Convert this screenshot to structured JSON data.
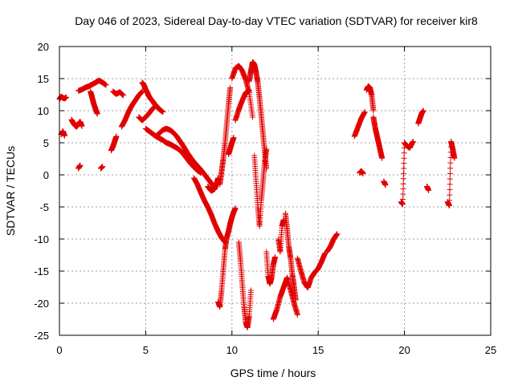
{
  "chart_data": {
    "type": "scatter",
    "title": "Day 046 of 2023, Sidereal Day-to-day VTEC variation (SDTVAR) for receiver kir8",
    "xlabel": "GPS time / hours",
    "ylabel": "SDTVAR / TECUs",
    "xlim": [
      0,
      25
    ],
    "ylim": [
      -25,
      20
    ],
    "xticks": [
      0,
      5,
      10,
      15,
      20,
      25
    ],
    "yticks": [
      -25,
      -20,
      -15,
      -10,
      -5,
      0,
      5,
      10,
      15,
      20
    ],
    "grid": true,
    "marker": "+",
    "color": "#e00000",
    "series": [
      {
        "name": "s1",
        "x": [
          0.0,
          0.1,
          0.2,
          0.3,
          0.4
        ],
        "y": [
          11.8,
          12.2,
          12.0,
          11.9,
          12.1
        ]
      },
      {
        "name": "s2",
        "x": [
          0.1,
          0.2,
          0.3
        ],
        "y": [
          6.3,
          6.8,
          6.1
        ]
      },
      {
        "name": "s3",
        "x": [
          0.7,
          0.8,
          0.9,
          1.0,
          1.1,
          1.2,
          1.3
        ],
        "y": [
          8.6,
          8.1,
          7.7,
          7.5,
          7.9,
          8.3,
          7.6
        ]
      },
      {
        "name": "s4",
        "x": [
          1.1,
          1.2
        ],
        "y": [
          1.0,
          1.5
        ]
      },
      {
        "name": "s5",
        "x": [
          1.1,
          1.3,
          1.5,
          1.7,
          1.9,
          2.1,
          2.3,
          2.5,
          2.7
        ],
        "y": [
          13.1,
          13.3,
          13.6,
          13.8,
          14.1,
          14.4,
          14.7,
          14.4,
          14.0
        ]
      },
      {
        "name": "s6",
        "x": [
          1.8,
          1.9,
          2.0,
          2.1,
          2.2
        ],
        "y": [
          13.0,
          12.0,
          11.0,
          10.2,
          9.5
        ]
      },
      {
        "name": "s7",
        "x": [
          2.4,
          2.5
        ],
        "y": [
          1.0,
          1.3
        ]
      },
      {
        "name": "s8",
        "x": [
          3.0,
          3.1,
          3.2,
          3.3
        ],
        "y": [
          3.8,
          4.4,
          5.2,
          6.0
        ]
      },
      {
        "name": "s9",
        "x": [
          3.1,
          3.3,
          3.5,
          3.7
        ],
        "y": [
          13.0,
          12.6,
          12.9,
          12.4
        ]
      },
      {
        "name": "s10",
        "x": [
          3.6,
          3.8,
          4.0,
          4.2,
          4.4,
          4.6,
          4.8
        ],
        "y": [
          7.5,
          8.5,
          9.8,
          10.8,
          11.6,
          12.4,
          13.0
        ]
      },
      {
        "name": "s11",
        "x": [
          4.6,
          4.8,
          5.0,
          5.2,
          5.4,
          5.6
        ],
        "y": [
          9.0,
          8.5,
          9.0,
          9.6,
          10.3,
          10.8
        ]
      },
      {
        "name": "s12",
        "x": [
          4.8,
          4.9,
          5.0,
          5.1,
          5.2,
          5.3,
          5.4,
          5.5,
          5.6,
          5.7,
          5.8,
          6.0
        ],
        "y": [
          14.4,
          14.0,
          13.3,
          12.8,
          12.2,
          11.8,
          11.5,
          11.1,
          10.8,
          10.5,
          10.2,
          9.8
        ]
      },
      {
        "name": "s13",
        "x": [
          5.0,
          5.2,
          5.4,
          5.6,
          5.8,
          6.0,
          6.2,
          6.4,
          6.6,
          6.8,
          7.0,
          7.2,
          7.4,
          7.6,
          7.8,
          8.0,
          8.2
        ],
        "y": [
          7.2,
          6.8,
          6.4,
          6.0,
          5.7,
          5.4,
          5.0,
          4.8,
          4.5,
          4.2,
          3.8,
          3.2,
          2.5,
          1.8,
          1.2,
          0.7,
          0.3
        ]
      },
      {
        "name": "s14",
        "x": [
          5.6,
          5.8,
          6.0,
          6.2,
          6.4,
          6.6,
          6.8,
          7.0,
          7.2,
          7.4,
          7.6,
          7.8,
          8.0,
          8.2,
          8.4,
          8.6,
          8.8,
          9.0
        ],
        "y": [
          6.0,
          6.5,
          7.0,
          7.2,
          7.0,
          6.6,
          6.0,
          5.2,
          4.4,
          3.5,
          2.7,
          2.0,
          1.4,
          0.8,
          0.1,
          -0.6,
          -1.3,
          -2.0
        ]
      },
      {
        "name": "s15",
        "x": [
          7.8,
          8.0,
          8.2,
          8.4,
          8.6,
          8.8,
          9.0,
          9.2,
          9.4,
          9.6
        ],
        "y": [
          -0.5,
          -1.5,
          -2.8,
          -4.0,
          -5.0,
          -6.2,
          -7.6,
          -8.8,
          -9.8,
          -10.5
        ]
      },
      {
        "name": "s16",
        "x": [
          8.6,
          8.8,
          9.0,
          9.1,
          9.2
        ],
        "y": [
          -1.8,
          -2.5,
          -2.2,
          -1.5,
          -0.5
        ]
      },
      {
        "name": "s17",
        "x": [
          9.2,
          9.3,
          9.4,
          9.5,
          9.6,
          9.7,
          9.8,
          9.9,
          10.0,
          10.1,
          10.2
        ],
        "y": [
          -19.8,
          -20.6,
          -18.0,
          -14.8,
          -11.6,
          -9.8,
          -8.8,
          -7.6,
          -6.6,
          -5.8,
          -5.2
        ]
      },
      {
        "name": "s18",
        "x": [
          9.3,
          9.4,
          9.5,
          9.6,
          9.7,
          9.8,
          9.9
        ],
        "y": [
          -1.5,
          0.5,
          2.5,
          5.0,
          8.0,
          11.0,
          13.6
        ]
      },
      {
        "name": "s19",
        "x": [
          9.8,
          9.9,
          10.0,
          10.1
        ],
        "y": [
          3.2,
          4.1,
          5.0,
          5.8
        ]
      },
      {
        "name": "s20",
        "x": [
          10.2,
          10.4,
          10.6,
          10.8,
          11.0
        ],
        "y": [
          8.5,
          10.2,
          11.6,
          12.8,
          13.2
        ]
      },
      {
        "name": "s21",
        "x": [
          10.0,
          10.2,
          10.4,
          10.6,
          10.8,
          11.0,
          11.2
        ],
        "y": [
          15.0,
          16.6,
          17.0,
          16.2,
          14.8,
          12.8,
          9.0
        ]
      },
      {
        "name": "s22",
        "x": [
          10.4,
          10.5,
          10.6,
          10.7,
          10.8,
          10.9,
          11.0,
          11.1
        ],
        "y": [
          -10.5,
          -13.5,
          -17.0,
          -20.5,
          -23.0,
          -23.8,
          -22.0,
          -18.0
        ]
      },
      {
        "name": "s23",
        "x": [
          11.0,
          11.1,
          11.2,
          11.3,
          11.4,
          11.5,
          11.6,
          11.7,
          11.8,
          11.9,
          12.0
        ],
        "y": [
          14.6,
          16.2,
          17.6,
          17.2,
          16.0,
          14.4,
          12.0,
          9.2,
          6.4,
          3.6,
          1.0
        ]
      },
      {
        "name": "s24",
        "x": [
          11.3,
          11.4,
          11.5,
          11.6,
          11.7,
          11.8,
          11.9,
          12.0
        ],
        "y": [
          3.0,
          -1.0,
          -5.0,
          -8.0,
          -4.0,
          -1.0,
          2.0,
          4.0
        ]
      },
      {
        "name": "s25",
        "x": [
          12.0,
          12.1,
          12.2,
          12.3,
          12.4,
          12.5
        ],
        "y": [
          -12.0,
          -15.8,
          -17.0,
          -16.0,
          -14.0,
          -12.8
        ]
      },
      {
        "name": "s26",
        "x": [
          12.4,
          12.6,
          12.8,
          13.0,
          13.2,
          13.4,
          13.6,
          13.8
        ],
        "y": [
          -22.5,
          -21.0,
          -19.0,
          -17.5,
          -16.0,
          -18.0,
          -20.0,
          -21.8
        ]
      },
      {
        "name": "s27",
        "x": [
          12.7,
          12.8,
          12.9,
          13.0
        ],
        "y": [
          -10.0,
          -12.0,
          -8.0,
          -7.0
        ]
      },
      {
        "name": "s28",
        "x": [
          13.1,
          13.2,
          13.3,
          13.4,
          13.5,
          13.6,
          13.7
        ],
        "y": [
          -6.0,
          -8.5,
          -11.2,
          -13.0,
          -15.5,
          -17.4,
          -19.5
        ]
      },
      {
        "name": "s29",
        "x": [
          13.8,
          14.0,
          14.2,
          14.4,
          14.6,
          14.8,
          15.0,
          15.2,
          15.4
        ],
        "y": [
          -13.0,
          -15.0,
          -16.8,
          -17.6,
          -16.0,
          -15.2,
          -14.6,
          -13.5,
          -12.2
        ]
      },
      {
        "name": "s30",
        "x": [
          15.5,
          15.7,
          15.9,
          16.1
        ],
        "y": [
          -12.0,
          -11.2,
          -10.0,
          -9.2
        ]
      },
      {
        "name": "s31",
        "x": [
          17.1,
          17.3,
          17.5,
          17.7
        ],
        "y": [
          6.0,
          7.4,
          8.8,
          9.8
        ]
      },
      {
        "name": "s32",
        "x": [
          17.4,
          17.5,
          17.6
        ],
        "y": [
          0.3,
          0.6,
          0.2
        ]
      },
      {
        "name": "s33",
        "x": [
          17.8,
          17.9,
          18.0,
          18.1,
          18.2
        ],
        "y": [
          13.2,
          13.8,
          13.6,
          12.4,
          10.0
        ]
      },
      {
        "name": "s34",
        "x": [
          18.2,
          18.3,
          18.4,
          18.5,
          18.6,
          18.7
        ],
        "y": [
          9.0,
          7.4,
          6.2,
          5.0,
          3.8,
          2.6
        ]
      },
      {
        "name": "s35",
        "x": [
          18.8,
          18.9
        ],
        "y": [
          -1.0,
          -1.6
        ]
      },
      {
        "name": "s36",
        "x": [
          19.8,
          19.9,
          20.0,
          20.1,
          20.3,
          20.5
        ],
        "y": [
          -4.2,
          -4.6,
          5.0,
          4.6,
          4.2,
          5.2
        ]
      },
      {
        "name": "s37",
        "x": [
          20.8,
          20.9,
          21.0,
          21.1
        ],
        "y": [
          8.0,
          8.8,
          9.6,
          10.0
        ]
      },
      {
        "name": "s38",
        "x": [
          21.3,
          21.4
        ],
        "y": [
          -1.8,
          -2.4
        ]
      },
      {
        "name": "s39",
        "x": [
          22.5,
          22.6,
          22.7,
          22.8,
          22.9
        ],
        "y": [
          -4.2,
          -4.8,
          5.2,
          4.0,
          2.6
        ]
      }
    ]
  }
}
